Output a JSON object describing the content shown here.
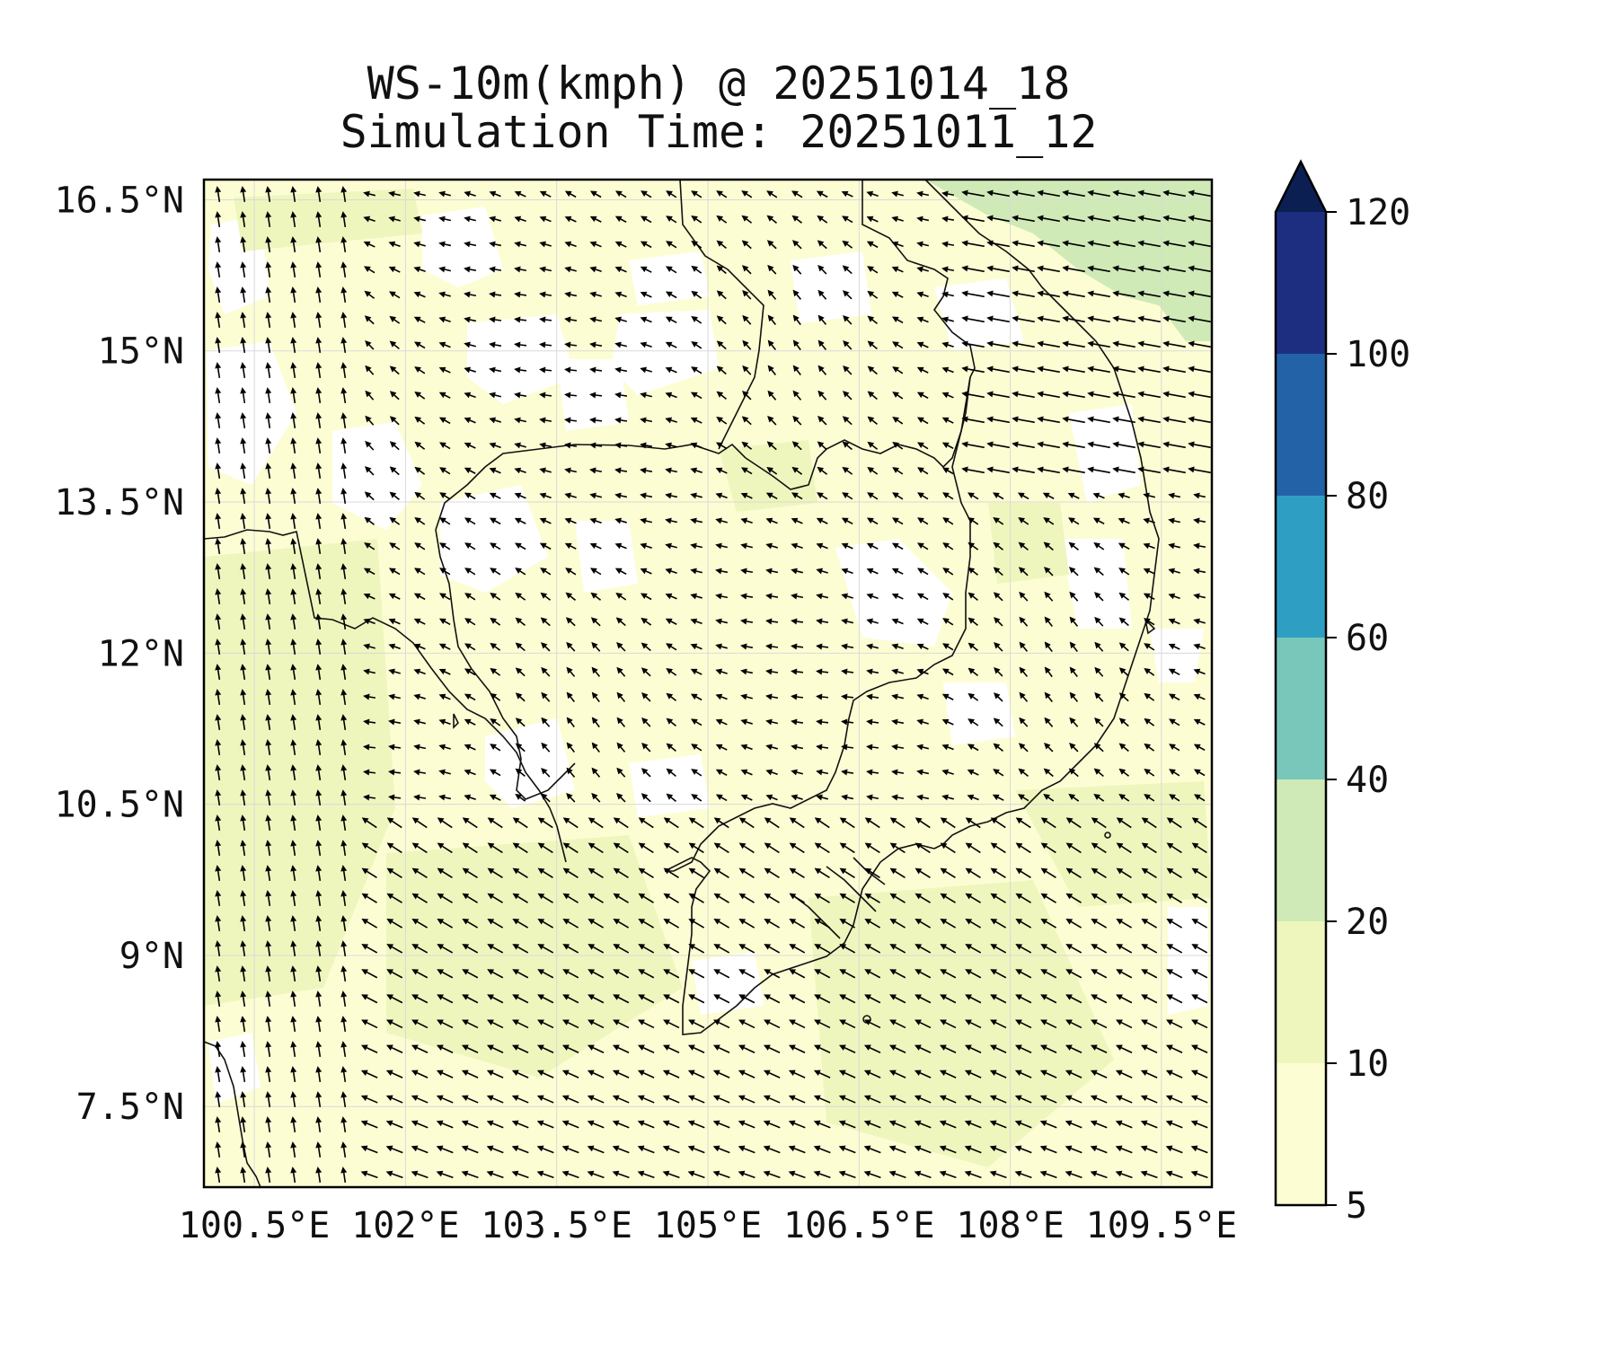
{
  "title": {
    "line1": "WS-10m(kmph) @ 20251014_18",
    "line2": "Simulation Time: 20251011_12"
  },
  "map": {
    "lon_range": [
      100.0,
      110.0
    ],
    "lat_range": [
      6.7,
      16.7
    ],
    "lon_ticks": [
      {
        "value": 100.5,
        "label": "100.5°E"
      },
      {
        "value": 102.0,
        "label": "102°E"
      },
      {
        "value": 103.5,
        "label": "103.5°E"
      },
      {
        "value": 105.0,
        "label": "105°E"
      },
      {
        "value": 106.5,
        "label": "106.5°E"
      },
      {
        "value": 108.0,
        "label": "108°E"
      },
      {
        "value": 109.5,
        "label": "109.5°E"
      }
    ],
    "lat_ticks": [
      {
        "value": 7.5,
        "label": "7.5°N"
      },
      {
        "value": 9.0,
        "label": "9°N"
      },
      {
        "value": 10.5,
        "label": "10.5°N"
      },
      {
        "value": 12.0,
        "label": "12°N"
      },
      {
        "value": 13.5,
        "label": "13.5°N"
      },
      {
        "value": 15.0,
        "label": "15°N"
      },
      {
        "value": 16.5,
        "label": "16.5°N"
      }
    ],
    "gridlines": true,
    "vectors": "wind arrows, predominantly from the east/southeast"
  },
  "colorbar": {
    "levels": [
      5,
      10,
      20,
      40,
      60,
      80,
      100,
      120
    ],
    "labels": [
      "5",
      "10",
      "20",
      "40",
      "60",
      "80",
      "100",
      "120"
    ],
    "colors": [
      "#fdfdd4",
      "#eef6bd",
      "#cfeab6",
      "#78c7ba",
      "#2e9fc3",
      "#2462a8",
      "#1d2e80"
    ],
    "extend_color": "#0c1f52",
    "extend": "max"
  },
  "colors": {
    "low_wind": "#fdfdd4",
    "mid_wind": "#eef6bd",
    "high_wind": "#cfeab6",
    "calm": "#ffffff"
  }
}
